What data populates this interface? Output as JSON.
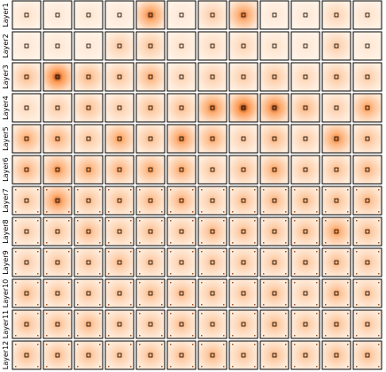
{
  "chart_data": {
    "type": "heatmap",
    "title": "",
    "rows": [
      "Layer1",
      "Layer2",
      "Layer3",
      "Layer4",
      "Layer5",
      "Layer6",
      "Layer7",
      "Layer8",
      "Layer9",
      "Layer10",
      "Layer11",
      "Layer12"
    ],
    "columns": 12,
    "colormap": "Oranges",
    "colors": {
      "low": "#fff5eb",
      "mid": "#fd8d3c",
      "high": "#7f2704",
      "frame": "#000000",
      "marker": "#000000"
    },
    "query_marker": "small hollow square at the patch center",
    "intensity": [
      [
        0.15,
        0.1,
        0.12,
        0.1,
        0.75,
        0.1,
        0.3,
        0.7,
        0.1,
        0.1,
        0.25,
        0.15
      ],
      [
        0.1,
        0.12,
        0.1,
        0.3,
        0.35,
        0.15,
        0.2,
        0.25,
        0.15,
        0.1,
        0.3,
        0.12
      ],
      [
        0.4,
        0.95,
        0.45,
        0.35,
        0.5,
        0.25,
        0.3,
        0.3,
        0.35,
        0.25,
        0.35,
        0.3
      ],
      [
        0.2,
        0.3,
        0.4,
        0.3,
        0.4,
        0.4,
        0.75,
        0.95,
        0.85,
        0.45,
        0.3,
        0.6
      ],
      [
        0.55,
        0.5,
        0.35,
        0.6,
        0.4,
        0.7,
        0.55,
        0.3,
        0.45,
        0.3,
        0.7,
        0.4
      ],
      [
        0.5,
        0.65,
        0.55,
        0.5,
        0.55,
        0.55,
        0.35,
        0.4,
        0.55,
        0.35,
        0.4,
        0.45
      ],
      [
        0.35,
        0.75,
        0.4,
        0.4,
        0.45,
        0.5,
        0.35,
        0.4,
        0.45,
        0.4,
        0.4,
        0.45
      ],
      [
        0.3,
        0.35,
        0.45,
        0.35,
        0.4,
        0.35,
        0.45,
        0.4,
        0.4,
        0.4,
        0.6,
        0.4
      ],
      [
        0.3,
        0.35,
        0.35,
        0.4,
        0.35,
        0.3,
        0.35,
        0.35,
        0.35,
        0.35,
        0.4,
        0.35
      ],
      [
        0.4,
        0.35,
        0.35,
        0.35,
        0.4,
        0.4,
        0.35,
        0.35,
        0.4,
        0.3,
        0.45,
        0.35
      ],
      [
        0.4,
        0.4,
        0.45,
        0.35,
        0.35,
        0.4,
        0.35,
        0.35,
        0.4,
        0.35,
        0.4,
        0.35
      ],
      [
        0.4,
        0.4,
        0.4,
        0.35,
        0.4,
        0.4,
        0.45,
        0.35,
        0.4,
        0.35,
        0.4,
        0.4
      ]
    ]
  }
}
